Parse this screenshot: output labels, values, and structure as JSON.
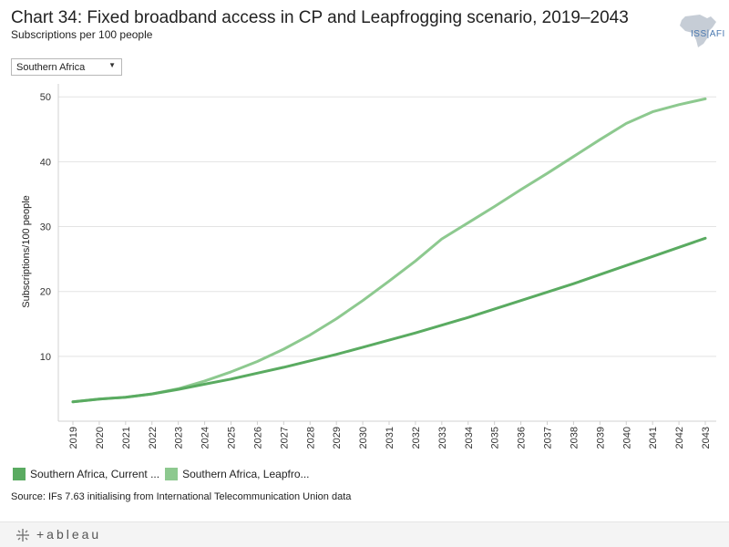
{
  "header": {
    "title": "Chart 34: Fixed broadband access in CP and Leapfrogging scenario, 2019–2043",
    "subtitle": "Subscriptions per 100 people"
  },
  "logo": {
    "text": "ISS|AFI"
  },
  "filter": {
    "selected": "Southern Africa",
    "caret": "▼"
  },
  "legend": {
    "items": [
      {
        "label": "Southern Africa, Current ...",
        "color": "#5aab61"
      },
      {
        "label": "Southern Africa, Leapfro...",
        "color": "#8dc98f"
      }
    ]
  },
  "source": "Source: IFs 7.63 initialising from International Telecommunication Union data",
  "footer": {
    "brand": "+ableau"
  },
  "chart_data": {
    "type": "line",
    "title": "Chart 34: Fixed broadband access in CP and Leapfrogging scenario, 2019–2043",
    "subtitle": "Subscriptions per 100 people",
    "xlabel": "",
    "ylabel": "Subscriptions/100 people",
    "ylim": [
      0,
      52
    ],
    "yticks": [
      10,
      20,
      30,
      40,
      50
    ],
    "grid": true,
    "x": [
      "2019",
      "2020",
      "2021",
      "2022",
      "2023",
      "2024",
      "2025",
      "2026",
      "2027",
      "2028",
      "2029",
      "2030",
      "2031",
      "2032",
      "2033",
      "2034",
      "2035",
      "2036",
      "2037",
      "2038",
      "2039",
      "2040",
      "2041",
      "2042",
      "2043"
    ],
    "series": [
      {
        "name": "Southern Africa, Current Path",
        "color": "#5aab61",
        "values": [
          3.0,
          3.4,
          3.7,
          4.2,
          4.9,
          5.7,
          6.5,
          7.4,
          8.3,
          9.3,
          10.3,
          11.4,
          12.5,
          13.6,
          14.8,
          16.0,
          17.3,
          18.6,
          19.9,
          21.2,
          22.6,
          24.0,
          25.4,
          26.8,
          28.2
        ]
      },
      {
        "name": "Southern Africa, Leapfrogging",
        "color": "#8dc98f",
        "values": [
          3.0,
          3.4,
          3.7,
          4.2,
          5.0,
          6.2,
          7.6,
          9.2,
          11.1,
          13.3,
          15.8,
          18.6,
          21.6,
          24.7,
          28.1,
          30.6,
          33.1,
          35.7,
          38.2,
          40.8,
          43.4,
          45.9,
          47.7,
          48.8,
          49.7
        ]
      }
    ]
  }
}
